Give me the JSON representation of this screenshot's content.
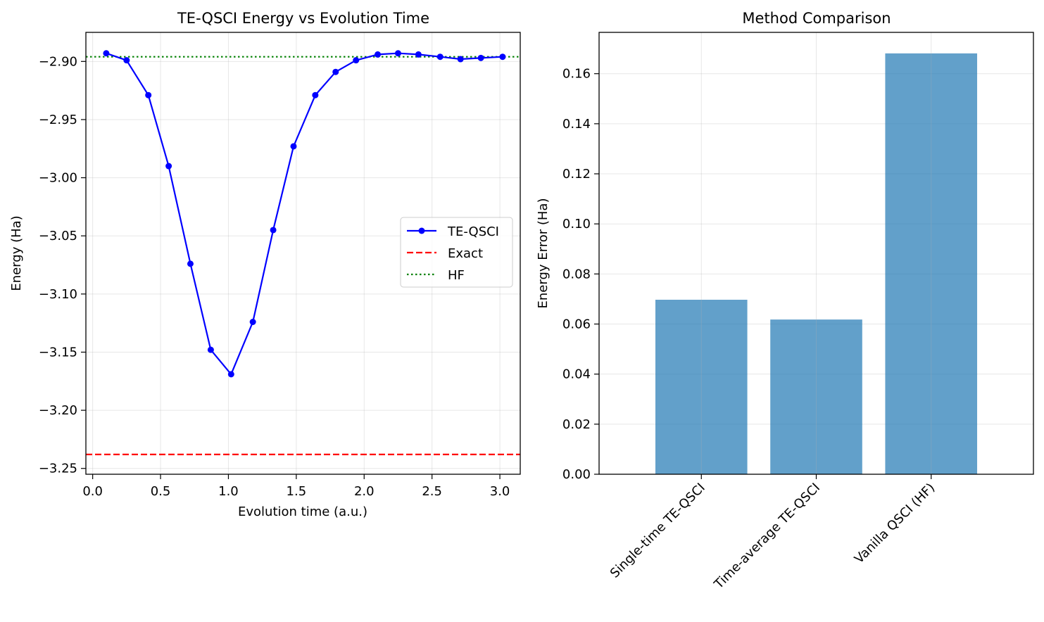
{
  "chart_data": [
    {
      "type": "line",
      "title": "TE-QSCI Energy vs Evolution Time",
      "xlabel": "Evolution time (a.u.)",
      "ylabel": "Energy (Ha)",
      "xlim": [
        -0.05,
        3.15
      ],
      "ylim": [
        -3.255,
        -2.875
      ],
      "xticks": [
        0.0,
        0.5,
        1.0,
        1.5,
        2.0,
        2.5,
        3.0
      ],
      "xtick_labels": [
        "0.0",
        "0.5",
        "1.0",
        "1.5",
        "2.0",
        "2.5",
        "3.0"
      ],
      "yticks": [
        -2.9,
        -2.95,
        -3.0,
        -3.05,
        -3.1,
        -3.15,
        -3.2,
        -3.25
      ],
      "ytick_labels": [
        "−2.90",
        "−2.95",
        "−3.00",
        "−3.05",
        "−3.10",
        "−3.15",
        "−3.20",
        "−3.25"
      ],
      "grid": true,
      "legend_position": "center-right",
      "series": [
        {
          "name": "TE-QSCI",
          "style": "solid-markers",
          "color": "#0000ff",
          "x": [
            0.1,
            0.25,
            0.41,
            0.56,
            0.72,
            0.87,
            1.02,
            1.18,
            1.33,
            1.48,
            1.64,
            1.79,
            1.94,
            2.1,
            2.25,
            2.4,
            2.56,
            2.71,
            2.86,
            3.02
          ],
          "y": [
            -2.893,
            -2.899,
            -2.929,
            -2.99,
            -3.074,
            -3.148,
            -3.169,
            -3.124,
            -3.045,
            -2.973,
            -2.929,
            -2.909,
            -2.899,
            -2.894,
            -2.893,
            -2.894,
            -2.896,
            -2.898,
            -2.897,
            -2.896
          ]
        },
        {
          "name": "Exact",
          "style": "dashed",
          "color": "#ff0000",
          "value": -3.238
        },
        {
          "name": "HF",
          "style": "dotted",
          "color": "#008000",
          "value": -2.896
        }
      ]
    },
    {
      "type": "bar",
      "title": "Method Comparison",
      "xlabel": "",
      "ylabel": "Energy Error (Ha)",
      "categories": [
        "Single-time TE-QSCI",
        "Time-average TE-QSCI",
        "Vanilla QSCI (HF)"
      ],
      "values": [
        0.0697,
        0.0618,
        0.1681
      ],
      "ylim": [
        0,
        0.1765
      ],
      "yticks": [
        0.0,
        0.02,
        0.04,
        0.06,
        0.08,
        0.1,
        0.12,
        0.14,
        0.16
      ],
      "ytick_labels": [
        "0.00",
        "0.02",
        "0.04",
        "0.06",
        "0.08",
        "0.10",
        "0.12",
        "0.14",
        "0.16"
      ],
      "bar_color": "#1f77b4",
      "bar_opacity": 0.7,
      "grid": true
    }
  ]
}
